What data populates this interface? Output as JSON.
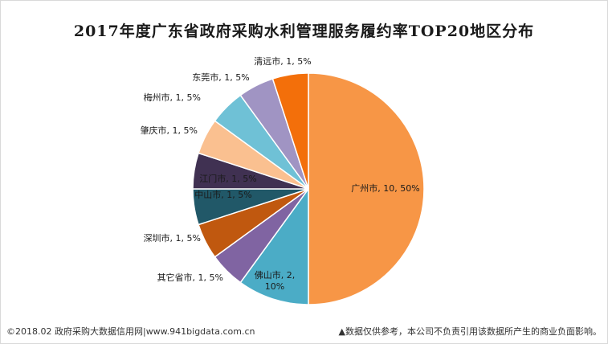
{
  "chart_data": {
    "type": "pie",
    "title": "2017年度广东省政府采购水利管理服务履约率TOP20地区分布",
    "slices": [
      {
        "name": "广州市",
        "value": 10,
        "percent": "50%",
        "label": "广州市, 10, 50%",
        "color": "#F79646"
      },
      {
        "name": "佛山市",
        "value": 2,
        "percent": "10%",
        "label_line1": "佛山市, 2,",
        "label_line2": "10%",
        "color": "#4BACC6"
      },
      {
        "name": "其它省市",
        "value": 1,
        "percent": "5%",
        "label": "其它省市, 1, 5%",
        "color": "#8064A2"
      },
      {
        "name": "深圳市",
        "value": 1,
        "percent": "5%",
        "label": "深圳市, 1, 5%",
        "color": "#C0580F"
      },
      {
        "name": "中山市",
        "value": 1,
        "percent": "5%",
        "label": "中山市, 1, 5%",
        "color": "#215868"
      },
      {
        "name": "江门市",
        "value": 1,
        "percent": "5%",
        "label": "江门市, 1, 5%",
        "color": "#403152"
      },
      {
        "name": "肇庆市",
        "value": 1,
        "percent": "5%",
        "label": "肇庆市, 1, 5%",
        "color": "#FAC090"
      },
      {
        "name": "梅州市",
        "value": 1,
        "percent": "5%",
        "label": "梅州市, 1, 5%",
        "color": "#6FC1D6"
      },
      {
        "name": "东莞市",
        "value": 1,
        "percent": "5%",
        "label": "东莞市, 1, 5%",
        "color": "#A094C3"
      },
      {
        "name": "清远市",
        "value": 1,
        "percent": "5%",
        "label": "清远市, 1, 5%",
        "color": "#F36F0A"
      }
    ]
  },
  "footer": {
    "left": "©2018.02 政府采购大数据信用网|www.941bigdata.com.cn",
    "right": "▲数据仅供参考，本公司不负责引用该数据所产生的商业负面影响。"
  }
}
